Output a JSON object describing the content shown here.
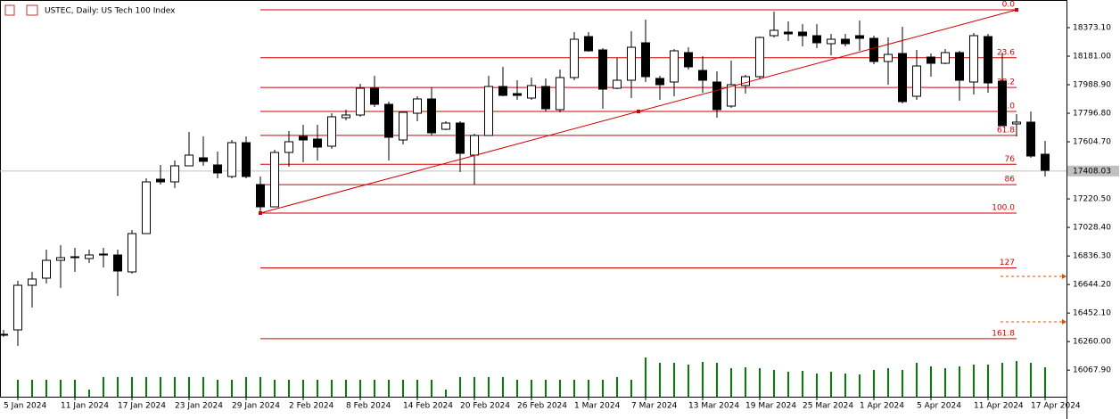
{
  "chart_data": {
    "type": "candlestick",
    "title": "USTEC, Daily: US Tech 100 Index",
    "categories": [
      null,
      "5 Jan 2024",
      null,
      null,
      null,
      "11 Jan 2024",
      null,
      null,
      null,
      "17 Jan 2024",
      null,
      null,
      null,
      "23 Jan 2024",
      null,
      null,
      null,
      "29 Jan 2024",
      null,
      null,
      null,
      "2 Feb 2024",
      null,
      null,
      null,
      "8 Feb 2024",
      null,
      null,
      null,
      "14 Feb 2024",
      null,
      null,
      null,
      "20 Feb 2024",
      null,
      null,
      null,
      "26 Feb 2024",
      null,
      null,
      null,
      "1 Mar 2024",
      null,
      null,
      null,
      "7 Mar 2024",
      null,
      null,
      null,
      "13 Mar 2024",
      null,
      null,
      null,
      "19 Mar 2024",
      null,
      null,
      null,
      "25 Mar 2024",
      null,
      null,
      null,
      "1 Apr 2024",
      null,
      null,
      null,
      "5 Apr 2024",
      null,
      null,
      null,
      "11 Apr 2024",
      null,
      null,
      null,
      "17 Apr 2024"
    ],
    "open": [
      16309,
      16339,
      16639,
      16687,
      16807,
      16825,
      16819,
      16843,
      16843,
      16729,
      16987,
      17353,
      17335,
      17443,
      17497,
      17449,
      17371,
      17599,
      17317,
      17167,
      17533,
      17641,
      17623,
      17575,
      17767,
      17785,
      17965,
      17857,
      17617,
      17797,
      17893,
      17689,
      17731,
      17515,
      17647,
      17977,
      17929,
      17899,
      17977,
      17821,
      18037,
      18313,
      18223,
      17965,
      18019,
      18271,
      18031,
      18007,
      18205,
      18085,
      18007,
      17845,
      17983,
      18043,
      18319,
      18343,
      18343,
      18319,
      18265,
      18295,
      18319,
      18301,
      18145,
      18199,
      17911,
      18175,
      18133,
      18205,
      18007,
      18313,
      18013,
      17725,
      17737,
      17521
    ],
    "high": [
      16339,
      16669,
      16729,
      16879,
      16909,
      16891,
      16879,
      16891,
      16879,
      17011,
      17359,
      17449,
      17479,
      17671,
      17641,
      17539,
      17617,
      17641,
      17371,
      17551,
      17677,
      17719,
      17719,
      17797,
      17821,
      17995,
      18049,
      17875,
      17809,
      17911,
      17971,
      17743,
      17743,
      17659,
      18049,
      18109,
      18019,
      18037,
      18031,
      18091,
      18343,
      18343,
      18235,
      18169,
      18349,
      18427,
      18049,
      18229,
      18241,
      18181,
      18079,
      18151,
      18055,
      18313,
      18481,
      18415,
      18397,
      18397,
      18331,
      18331,
      18421,
      18319,
      18307,
      18379,
      18223,
      18199,
      18229,
      18217,
      18337,
      18331,
      18205,
      17791,
      17809,
      17611
    ],
    "low": [
      16291,
      16231,
      16489,
      16651,
      16621,
      16729,
      16789,
      16759,
      16567,
      16717,
      16987,
      17317,
      17293,
      17443,
      17443,
      17359,
      17359,
      17359,
      17119,
      17167,
      17437,
      17467,
      17479,
      17557,
      17749,
      17773,
      17839,
      17479,
      17587,
      17743,
      17647,
      17683,
      17401,
      17317,
      17647,
      17911,
      17887,
      17887,
      17809,
      17803,
      18019,
      18211,
      17827,
      17959,
      17899,
      18007,
      17887,
      17911,
      18091,
      17935,
      17767,
      17833,
      17929,
      18031,
      18307,
      18283,
      18247,
      18235,
      18187,
      18247,
      18217,
      18127,
      17989,
      17863,
      17887,
      18043,
      18127,
      17881,
      17923,
      17935,
      17713,
      17641,
      17497,
      17371
    ],
    "close": [
      16309,
      16639,
      16681,
      16807,
      16825,
      16831,
      16843,
      16849,
      16735,
      16987,
      17335,
      17335,
      17443,
      17515,
      17473,
      17395,
      17599,
      17371,
      17167,
      17533,
      17605,
      17617,
      17569,
      17773,
      17785,
      17965,
      17857,
      17635,
      17803,
      17893,
      17665,
      17731,
      17527,
      17647,
      17977,
      17917,
      17917,
      17983,
      17827,
      18037,
      18295,
      18217,
      17959,
      18019,
      18241,
      18043,
      17989,
      18217,
      18109,
      18019,
      17821,
      17989,
      18043,
      18307,
      18355,
      18331,
      18319,
      18271,
      18295,
      18265,
      18301,
      18145,
      18193,
      17875,
      18115,
      18133,
      18205,
      18019,
      18319,
      18001,
      17713,
      17737,
      17509,
      17413
    ],
    "volume": [
      null,
      19,
      19,
      19,
      19,
      19,
      8,
      22,
      22,
      22,
      22,
      22,
      22,
      22,
      22,
      19,
      19,
      22,
      22,
      19,
      19,
      19,
      19,
      19,
      19,
      19,
      19,
      19,
      19,
      19,
      19,
      8,
      22,
      22,
      22,
      22,
      19,
      19,
      19,
      19,
      19,
      19,
      19,
      22,
      19,
      44,
      38,
      38,
      36,
      39,
      38,
      32,
      33,
      32,
      30,
      28,
      29,
      26,
      28,
      26,
      25,
      30,
      32,
      30,
      38,
      34,
      32,
      34,
      36,
      36,
      38,
      40,
      38,
      33
    ],
    "up_color": "#ffffff",
    "down_color": "#000000",
    "volume_color": "#008000",
    "ylim": [
      15889,
      18559
    ],
    "yticks": [
      {
        "value": 18373.1,
        "label": "18373.10"
      },
      {
        "value": 18181.0,
        "label": "18181.00"
      },
      {
        "value": 17988.9,
        "label": "17988.90"
      },
      {
        "value": 17796.8,
        "label": "17796.80"
      },
      {
        "value": 17604.7,
        "label": "17604.70"
      },
      {
        "value": 17220.5,
        "label": "17220.50"
      },
      {
        "value": 17028.4,
        "label": "17028.40"
      },
      {
        "value": 16836.3,
        "label": "16836.30"
      },
      {
        "value": 16644.2,
        "label": "16644.20"
      },
      {
        "value": 16452.1,
        "label": "16452.10"
      },
      {
        "value": 16260.0,
        "label": "16260.00"
      },
      {
        "value": 16067.9,
        "label": "16067.90"
      }
    ],
    "last_price": {
      "value": 17408.03,
      "label": "17408.03"
    },
    "fibonacci": {
      "high": 18493,
      "low": 17125,
      "color": "#d00000",
      "levels": [
        {
          "value": 0,
          "label": "0.0"
        },
        23.6,
        38.2,
        {
          "value": 50,
          "label": "50.0"
        },
        61.8,
        76,
        86,
        {
          "value": 100,
          "label": "100.0"
        },
        127,
        161.8
      ]
    }
  }
}
